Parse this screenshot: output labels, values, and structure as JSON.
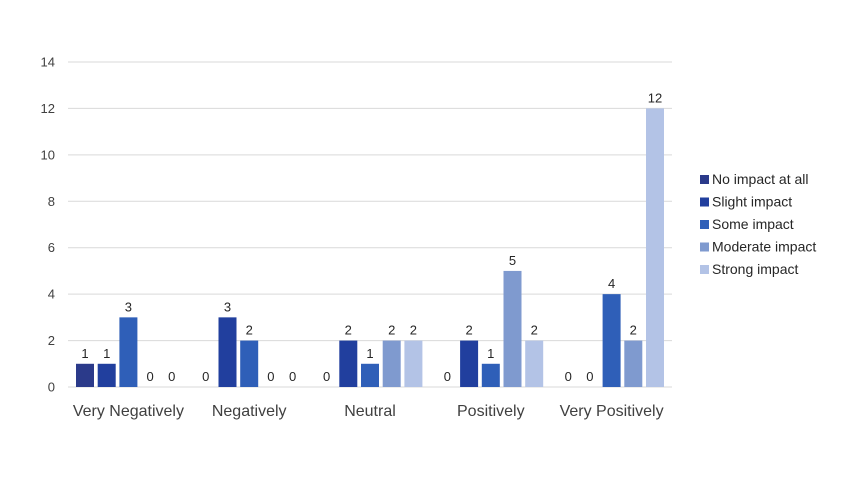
{
  "chart_data": {
    "type": "bar",
    "categories": [
      "Very Negatively",
      "Negatively",
      "Neutral",
      "Positively",
      "Very Positively"
    ],
    "series": [
      {
        "name": "No impact at all",
        "color": "#2b3a8a",
        "values": [
          1,
          0,
          0,
          0,
          0
        ]
      },
      {
        "name": "Slight impact",
        "color": "#213f9e",
        "values": [
          1,
          3,
          2,
          2,
          0
        ]
      },
      {
        "name": "Some impact",
        "color": "#2f5fb8",
        "values": [
          3,
          2,
          1,
          1,
          4
        ]
      },
      {
        "name": "Moderate impact",
        "color": "#7f9acf",
        "values": [
          0,
          0,
          2,
          5,
          2
        ]
      },
      {
        "name": "Strong impact",
        "color": "#b3c3e6",
        "values": [
          0,
          0,
          2,
          2,
          12
        ]
      }
    ],
    "yticks": [
      "0",
      "2",
      "4",
      "6",
      "8",
      "10",
      "12",
      "14"
    ],
    "ylim": [
      0,
      14
    ],
    "grid": true,
    "legend_position": "right"
  }
}
